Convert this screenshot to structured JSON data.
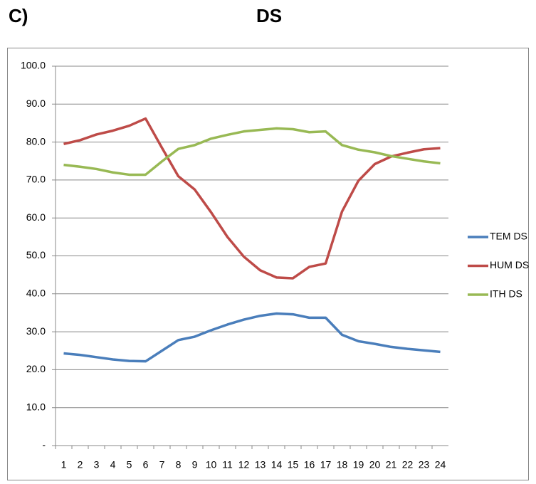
{
  "panel_label": "C)",
  "chart_data": {
    "type": "line",
    "title": "DS",
    "categories": [
      "1",
      "2",
      "3",
      "4",
      "5",
      "6",
      "7",
      "8",
      "9",
      "10",
      "11",
      "12",
      "13",
      "14",
      "15",
      "16",
      "17",
      "18",
      "19",
      "20",
      "21",
      "22",
      "23",
      "24"
    ],
    "series": [
      {
        "name": "TEM DS",
        "color": "#4a7ebb",
        "values": [
          24.3,
          23.9,
          23.3,
          22.7,
          22.3,
          22.2,
          25.0,
          27.8,
          28.7,
          30.4,
          31.9,
          33.2,
          34.2,
          34.8,
          34.6,
          33.7,
          33.7,
          29.2,
          27.5,
          26.8,
          26.0,
          25.5,
          25.1,
          24.7
        ]
      },
      {
        "name": "HUM DS",
        "color": "#be4b48",
        "values": [
          79.5,
          80.5,
          82.0,
          83.0,
          84.3,
          86.2,
          78.5,
          71.0,
          67.5,
          61.5,
          55.0,
          49.8,
          46.2,
          44.3,
          44.1,
          47.1,
          48.0,
          61.7,
          69.8,
          74.2,
          76.2,
          77.2,
          78.1,
          78.4
        ]
      },
      {
        "name": "ITH DS",
        "color": "#98b954",
        "values": [
          74.0,
          73.5,
          72.9,
          72.0,
          71.4,
          71.4,
          74.9,
          78.2,
          79.2,
          80.9,
          81.9,
          82.8,
          83.2,
          83.6,
          83.4,
          82.6,
          82.8,
          79.2,
          78.0,
          77.3,
          76.3,
          75.6,
          74.9,
          74.4
        ]
      }
    ],
    "ylim": [
      0,
      100
    ],
    "yticks": [
      {
        "value": 0,
        "label": "-"
      },
      {
        "value": 10,
        "label": "10.0"
      },
      {
        "value": 20,
        "label": "20.0"
      },
      {
        "value": 30,
        "label": "30.0"
      },
      {
        "value": 40,
        "label": "40.0"
      },
      {
        "value": 50,
        "label": "50.0"
      },
      {
        "value": 60,
        "label": "60.0"
      },
      {
        "value": 70,
        "label": "70.0"
      },
      {
        "value": 80,
        "label": "80.0"
      },
      {
        "value": 90,
        "label": "90.0"
      },
      {
        "value": 100,
        "label": "100.0"
      }
    ],
    "grid": true,
    "legend": "right"
  }
}
